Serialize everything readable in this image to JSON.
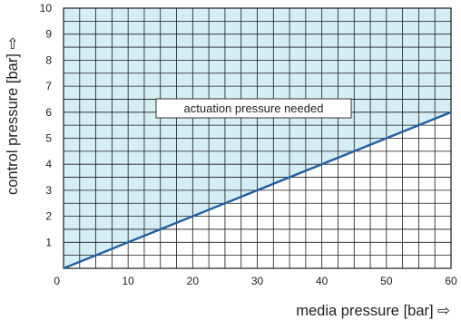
{
  "chart_data": {
    "type": "line",
    "title": "",
    "xlabel": "media pressure [bar] ⇨",
    "ylabel": "control pressure [bar] ⇨",
    "xlim": [
      0,
      60
    ],
    "ylim": [
      0,
      10
    ],
    "x_ticks": [
      0,
      10,
      20,
      30,
      40,
      50,
      60
    ],
    "y_ticks": [
      1,
      2,
      3,
      4,
      5,
      6,
      7,
      8,
      9,
      10
    ],
    "x_minor_step": 2.5,
    "y_minor_step": 0.5,
    "grid": true,
    "series": [
      {
        "x": [
          0,
          60
        ],
        "y": [
          0,
          6
        ]
      }
    ],
    "shaded_region": "above line",
    "annotation": {
      "text": "actuation pressure needed",
      "x": 30,
      "y": 6.1
    },
    "colors": {
      "line": "#1f5fa3",
      "fill": "#d4eef3",
      "grid": "#1a1a1a"
    }
  }
}
